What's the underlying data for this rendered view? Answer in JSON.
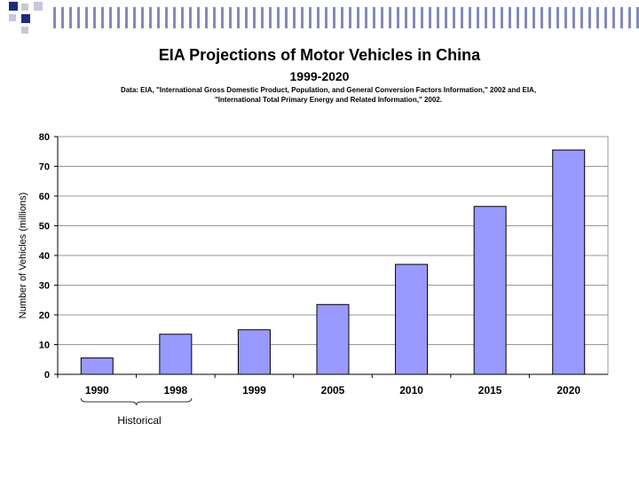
{
  "chart_data": {
    "type": "bar",
    "title": "EIA Projections of Motor Vehicles in China",
    "subtitle": "1999-2020",
    "source_line1": "Data:  EIA, \"International Gross Domestic Product, Population, and General Conversion Factors Information,\" 2002 and EIA,",
    "source_line2": "\"International Total Primary Energy and Related Information,\" 2002.",
    "categories": [
      "1990",
      "1998",
      "1999",
      "2005",
      "2010",
      "2015",
      "2020"
    ],
    "values": [
      5.5,
      13.5,
      15,
      23.5,
      37,
      56.5,
      75.5
    ],
    "xlabel": "",
    "ylabel": "Number of Vehicles (millions)",
    "ylim": [
      0,
      80
    ],
    "yticks": [
      0,
      10,
      20,
      30,
      40,
      50,
      60,
      70,
      80
    ],
    "grid": true,
    "bar_color": "#9999ff",
    "annotation": "Historical"
  }
}
